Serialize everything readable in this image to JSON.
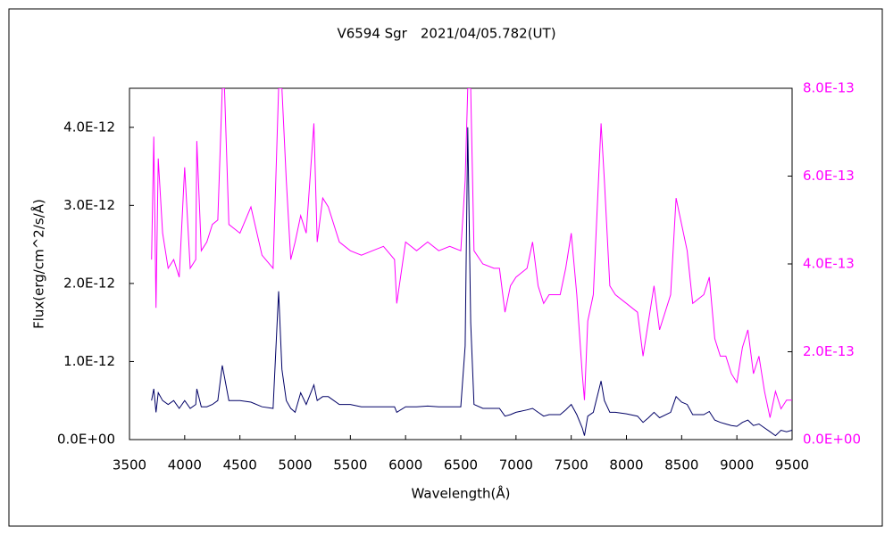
{
  "chart_data": {
    "type": "line",
    "title": "V6594 Sgr　2021/04/05.782(UT)",
    "xlabel": "Wavelength(Å)",
    "ylabel": "Flux(erg/cm^2/s/Å)",
    "x": [
      3700,
      3720,
      3740,
      3760,
      3800,
      3850,
      3900,
      3950,
      4000,
      4050,
      4100,
      4110,
      4150,
      4200,
      4250,
      4300,
      4340,
      4360,
      4400,
      4500,
      4600,
      4700,
      4800,
      4850,
      4880,
      4920,
      4960,
      5000,
      5050,
      5100,
      5170,
      5200,
      5250,
      5300,
      5400,
      5500,
      5600,
      5700,
      5800,
      5900,
      5920,
      6000,
      6100,
      6200,
      6300,
      6400,
      6500,
      6540,
      6563,
      6590,
      6620,
      6700,
      6800,
      6850,
      6900,
      6950,
      7000,
      7100,
      7150,
      7200,
      7250,
      7300,
      7400,
      7450,
      7500,
      7550,
      7600,
      7620,
      7650,
      7700,
      7770,
      7800,
      7850,
      7900,
      8000,
      8100,
      8150,
      8200,
      8250,
      8300,
      8400,
      8450,
      8500,
      8550,
      8600,
      8700,
      8750,
      8800,
      8850,
      8900,
      8950,
      9000,
      9050,
      9100,
      9150,
      9200,
      9250,
      9300,
      9350,
      9400,
      9450,
      9500
    ],
    "series": [
      {
        "color": "#ff00ff",
        "axis": "y2",
        "values": [
          4.1e-13,
          6.9e-13,
          3e-13,
          6.4e-13,
          4.7e-13,
          3.9e-13,
          4.1e-13,
          3.7e-13,
          6.2e-13,
          3.9e-13,
          4.1e-13,
          6.8e-13,
          4.3e-13,
          4.5e-13,
          4.9e-13,
          5e-13,
          8e-13,
          8e-13,
          4.9e-13,
          4.7e-13,
          5.3e-13,
          4.2e-13,
          3.9e-13,
          8e-13,
          8e-13,
          5.9e-13,
          4.1e-13,
          4.5e-13,
          5.1e-13,
          4.7e-13,
          7.2e-13,
          4.5e-13,
          5.5e-13,
          5.3e-13,
          4.5e-13,
          4.3e-13,
          4.2e-13,
          4.3e-13,
          4.4e-13,
          4.1e-13,
          3.1e-13,
          4.5e-13,
          4.3e-13,
          4.5e-13,
          4.3e-13,
          4.4e-13,
          4.3e-13,
          5.9e-13,
          8e-13,
          8e-13,
          4.3e-13,
          4e-13,
          3.9e-13,
          3.9e-13,
          2.9e-13,
          3.5e-13,
          3.7e-13,
          3.9e-13,
          4.5e-13,
          3.5e-13,
          3.1e-13,
          3.3e-13,
          3.3e-13,
          3.9e-13,
          4.7e-13,
          3.3e-13,
          1.5e-13,
          9e-14,
          2.7e-13,
          3.3e-13,
          7.2e-13,
          5.9e-13,
          3.5e-13,
          3.3e-13,
          3.1e-13,
          2.9e-13,
          1.9e-13,
          2.7e-13,
          3.5e-13,
          2.5e-13,
          3.3e-13,
          5.5e-13,
          4.9e-13,
          4.3e-13,
          3.1e-13,
          3.3e-13,
          3.7e-13,
          2.3e-13,
          1.9e-13,
          1.9e-13,
          1.5e-13,
          1.3e-13,
          2.1e-13,
          2.5e-13,
          1.5e-13,
          1.9e-13,
          1.1e-13,
          5e-14,
          1.1e-13,
          7e-14,
          9e-14,
          9e-14
        ]
      },
      {
        "color": "#000066",
        "values": [
          5e-13,
          6.5e-13,
          3.5e-13,
          6e-13,
          5e-13,
          4.5e-13,
          5e-13,
          4e-13,
          5e-13,
          4e-13,
          4.5e-13,
          6.5e-13,
          4.2e-13,
          4.2e-13,
          4.5e-13,
          5e-13,
          9.5e-13,
          8e-13,
          5e-13,
          5e-13,
          4.8e-13,
          4.2e-13,
          4e-13,
          1.9e-12,
          9e-13,
          5e-13,
          4e-13,
          3.5e-13,
          6e-13,
          4.5e-13,
          7e-13,
          5e-13,
          5.5e-13,
          5.5e-13,
          4.5e-13,
          4.5e-13,
          4.2e-13,
          4.2e-13,
          4.2e-13,
          4.2e-13,
          3.5e-13,
          4.2e-13,
          4.2e-13,
          4.3e-13,
          4.2e-13,
          4.2e-13,
          4.2e-13,
          1.2e-12,
          4e-12,
          1.5e-12,
          4.5e-13,
          4e-13,
          4e-13,
          4e-13,
          3e-13,
          3.2e-13,
          3.5e-13,
          3.8e-13,
          4e-13,
          3.5e-13,
          3e-13,
          3.2e-13,
          3.2e-13,
          3.8e-13,
          4.5e-13,
          3.2e-13,
          1.5e-13,
          5e-14,
          3e-13,
          3.5e-13,
          7.5e-13,
          5e-13,
          3.5e-13,
          3.5e-13,
          3.3e-13,
          3e-13,
          2.2e-13,
          2.8e-13,
          3.5e-13,
          2.8e-13,
          3.5e-13,
          5.5e-13,
          4.8e-13,
          4.5e-13,
          3.2e-13,
          3.2e-13,
          3.6e-13,
          2.5e-13,
          2.2e-13,
          2e-13,
          1.8e-13,
          1.7e-13,
          2.2e-13,
          2.5e-13,
          1.8e-13,
          2e-13,
          1.5e-13,
          1e-13,
          5e-14,
          1.2e-13,
          1e-13,
          1.2e-13
        ]
      }
    ],
    "xlim": [
      3500,
      9500
    ],
    "xticks": [
      3500,
      4000,
      4500,
      5000,
      5500,
      6000,
      6500,
      7000,
      7500,
      8000,
      8500,
      9000,
      9500
    ],
    "ylim": [
      0,
      4.5e-12
    ],
    "yticks": [
      {
        "value": 0,
        "label": "0.0E+00"
      },
      {
        "value": 1e-12,
        "label": "1.0E-12"
      },
      {
        "value": 2e-12,
        "label": "2.0E-12"
      },
      {
        "value": 3e-12,
        "label": "3.0E-12"
      },
      {
        "value": 4e-12,
        "label": "4.0E-12"
      }
    ],
    "y2lim": [
      0,
      8e-13
    ],
    "y2ticks": [
      {
        "value": 0,
        "label": "0.0E+00"
      },
      {
        "value": 2e-13,
        "label": "2.0E-13"
      },
      {
        "value": 4e-13,
        "label": "4.0E-13"
      },
      {
        "value": 6e-13,
        "label": "6.0E-13"
      },
      {
        "value": 8e-13,
        "label": "8.0E-13"
      }
    ],
    "y2color": "#ff00ff"
  }
}
